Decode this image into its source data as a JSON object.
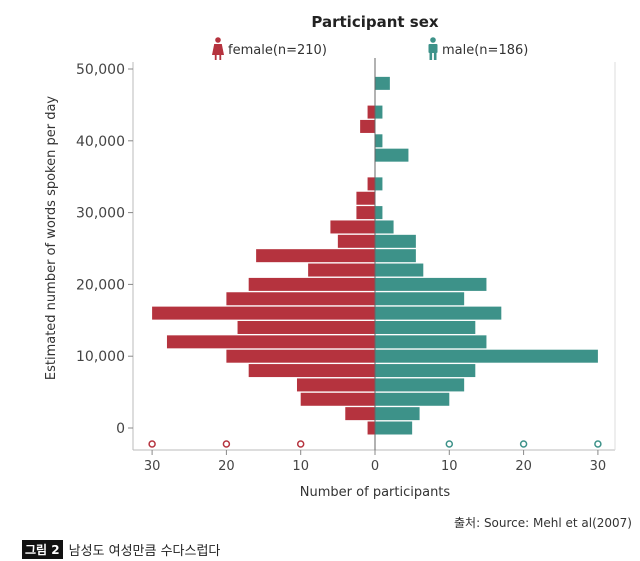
{
  "chart_data": {
    "type": "bar",
    "orientation": "horizontal-pyramid",
    "title": "Participant sex",
    "xlabel": "Number of participants",
    "ylabel": "Estimated number of words spoken per day",
    "y_ticks": [
      0,
      10000,
      20000,
      30000,
      40000,
      50000
    ],
    "y_tick_labels": [
      "0",
      "10,000",
      "20,000",
      "30,000",
      "40,000",
      "50,000"
    ],
    "x_ticks": [
      -30,
      -20,
      -10,
      0,
      10,
      20,
      30
    ],
    "x_tick_labels": [
      "30",
      "20",
      "10",
      "0",
      "10",
      "20",
      "30"
    ],
    "xlim": [
      -30,
      30
    ],
    "ylim": [
      0,
      50000
    ],
    "bin_size": 2000,
    "bin_centers": [
      0,
      2000,
      4000,
      6000,
      8000,
      10000,
      12000,
      14000,
      16000,
      18000,
      20000,
      22000,
      24000,
      26000,
      28000,
      30000,
      32000,
      34000,
      36000,
      38000,
      40000,
      42000,
      44000,
      46000,
      48000
    ],
    "series": [
      {
        "name": "female(n=210)",
        "color": "#b5333e",
        "side": "left",
        "values": [
          1,
          4,
          10,
          10.5,
          17,
          20,
          28,
          18.5,
          30,
          20,
          17,
          9,
          16,
          5,
          6,
          2.5,
          2.5,
          1,
          0,
          0,
          0,
          2,
          1,
          0,
          0
        ]
      },
      {
        "name": "male(n=186)",
        "color": "#3d9289",
        "side": "right",
        "values": [
          5,
          6,
          10,
          12,
          13.5,
          30,
          15,
          13.5,
          17,
          12,
          15,
          6.5,
          5.5,
          5.5,
          2.5,
          1,
          0,
          1,
          0,
          4.5,
          1,
          0,
          1,
          0,
          2
        ]
      }
    ],
    "legend_placement": "top-center",
    "grid": false
  },
  "source_text": "출처: Source: Mehl et al(2007)",
  "caption": {
    "label": "그림 2",
    "text": "남성도 여성만큼 수다스럽다"
  }
}
